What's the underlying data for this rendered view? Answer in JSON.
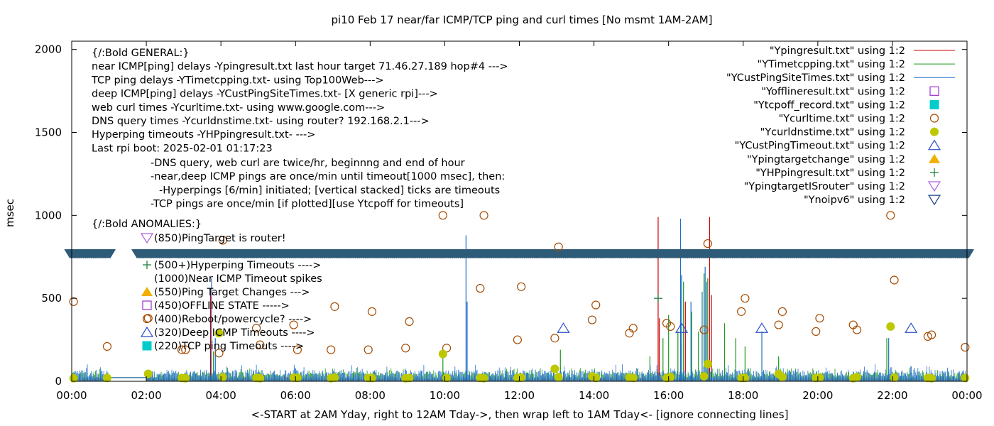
{
  "chart_data": {
    "type": "scatter",
    "title": "pi10 Feb 17  near/far ICMP/TCP ping and curl times [No msmt 1AM-2AM]",
    "xlabel": "<-START at 2AM Yday, right to 12AM Tday->, then wrap left to 1AM Tday<- [ignore connecting lines]",
    "ylabel": "msec",
    "xlim": [
      0,
      24
    ],
    "ylim": [
      0,
      2050
    ],
    "x_ticks": [
      "00:00",
      "02:00",
      "04:00",
      "06:00",
      "08:00",
      "10:00",
      "12:00",
      "14:00",
      "16:00",
      "18:00",
      "20:00",
      "22:00",
      "00:00"
    ],
    "y_ticks": [
      "0",
      "500",
      "1000",
      "1500",
      "2000"
    ],
    "legend_position": "top-right",
    "legend": [
      {
        "label": "\"Ypingresult.txt\" using 1:2",
        "marker": "line",
        "color": "#cc0000"
      },
      {
        "label": "\"YTimetcpping.txt\" using 1:2",
        "marker": "line",
        "color": "#1a9a1a"
      },
      {
        "label": "\"YCustPingSiteTimes.txt\" using 1:2",
        "marker": "line",
        "color": "#1e6fc8"
      },
      {
        "label": "\"Yofflineresult.txt\" using 1:2",
        "marker": "open-square",
        "color": "#9a2fd0"
      },
      {
        "label": "\"Ytcpoff_record.txt\" using 1:2",
        "marker": "filled-square",
        "color": "#00cccc"
      },
      {
        "label": "\"Ycurltime.txt\" using 1:2",
        "marker": "open-circle",
        "color": "#a54a00"
      },
      {
        "label": "\"Ycurldnstime.txt\" using 1:2",
        "marker": "filled-circle",
        "color": "#bcc800"
      },
      {
        "label": "\"YCustPingTimeout.txt\" using 1:2",
        "marker": "open-triangle-up",
        "color": "#2a4fc8"
      },
      {
        "label": "\"Ypingtargetchange\" using 1:2",
        "marker": "filled-triangle-up",
        "color": "#f0b000"
      },
      {
        "label": "\"YHPpingresult.txt\" using 1:2",
        "marker": "plus",
        "color": "#127a30"
      },
      {
        "label": "\"YpingtargetISrouter\" using 1:2",
        "marker": "open-triangle-down",
        "color": "#b060e0"
      },
      {
        "label": "\"Ynoipv6\" using 1:2",
        "marker": "open-triangle-down",
        "color": "#1a3e88"
      }
    ],
    "annotations_general": [
      "{/:Bold GENERAL:}",
      "near ICMP[ping] delays -Ypingresult.txt last hour target 71.46.27.189 hop#4 --->",
      "TCP ping delays -YTimetcpping.txt- using Top100Web--->",
      "deep ICMP[ping] delays -YCustPingSiteTimes.txt- [X generic rpi]--->",
      "web curl times -Ycurltime.txt- using www.google.com--->",
      "DNS query times -Ycurldnstime.txt- using router? 192.168.2.1--->",
      "Hyperping timeouts -YHPpingresult.txt- --->",
      "Last rpi boot: 2025-02-01 01:17:23"
    ],
    "annotations_rules": [
      "-DNS query, web curl are twice/hr, beginnng and end of hour",
      "-near,deep ICMP pings are once/min until timeout[1000 msec], then:",
      "-Hyperpings [6/min] initiated; [vertical stacked] ticks are timeouts",
      "-TCP pings are once/min [if plotted][use Ytcpoff for timeouts]"
    ],
    "annotations_anomalies": [
      {
        "marker": "none",
        "text": "{/:Bold ANOMALIES:}"
      },
      {
        "marker": "open-triangle-down",
        "text": "(850)PingTarget is router!"
      },
      {
        "marker": "plus",
        "text": "(500+)Hyperping Timeouts ---->"
      },
      {
        "marker": "none",
        "text": "(1000)Near ICMP Timeout spikes"
      },
      {
        "marker": "filled-triangle-up",
        "text": "(550)Ping Target Changes --->"
      },
      {
        "marker": "open-square",
        "text": "(450)OFFLINE STATE ----->"
      },
      {
        "marker": "open-circle",
        "text": "(400)Reboot/powercycle? ---->"
      },
      {
        "marker": "open-triangle-up",
        "text": "(320)Deep ICMP Timeouts ---->"
      },
      {
        "marker": "filled-square",
        "text": "(220)TCP ping Timeouts ---->"
      }
    ],
    "noipv6_band": {
      "y": 770,
      "color": "#2e5b78",
      "gap_x": [
        1.05,
        1.75
      ]
    },
    "series": [
      {
        "name": "\"Ypingresult.txt\" using 1:2",
        "kind": "noise",
        "color": "#cc0000",
        "x_range": [
          0,
          24
        ],
        "gap": [
          1,
          2
        ],
        "base": 8,
        "amp": 15,
        "spikes": [
          [
            3.72,
            560
          ],
          [
            15.72,
            990
          ],
          [
            15.75,
            380
          ],
          [
            16.35,
            230
          ],
          [
            16.45,
            480
          ],
          [
            17.1,
            990
          ],
          [
            17.15,
            520
          ]
        ]
      },
      {
        "name": "\"YTimetcpping.txt\" using 1:2",
        "kind": "noise",
        "color": "#1a9a1a",
        "x_range": [
          0,
          24
        ],
        "gap": [
          1,
          2
        ],
        "base": 18,
        "amp": 40,
        "spikes": [
          [
            3.8,
            180
          ],
          [
            9.95,
            170
          ],
          [
            13.1,
            190
          ],
          [
            15.5,
            150
          ],
          [
            15.85,
            260
          ],
          [
            16.0,
            400
          ],
          [
            16.25,
            300
          ],
          [
            16.4,
            600
          ],
          [
            16.62,
            420
          ],
          [
            16.8,
            300
          ],
          [
            16.95,
            650
          ],
          [
            17.05,
            620
          ],
          [
            17.5,
            350
          ],
          [
            17.8,
            260
          ],
          [
            18.05,
            210
          ],
          [
            18.95,
            150
          ],
          [
            21.85,
            260
          ]
        ]
      },
      {
        "name": "\"YCustPingSiteTimes.txt\" using 1:2",
        "kind": "noise",
        "color": "#1e6fc8",
        "x_range": [
          0,
          24
        ],
        "gap": [
          1,
          2
        ],
        "base": 15,
        "amp": 55,
        "spikes": [
          [
            3.75,
            620
          ],
          [
            3.85,
            260
          ],
          [
            10.57,
            880
          ],
          [
            10.6,
            480
          ],
          [
            16.32,
            980
          ],
          [
            16.35,
            640
          ],
          [
            16.6,
            480
          ],
          [
            16.9,
            540
          ],
          [
            16.98,
            690
          ],
          [
            17.02,
            600
          ],
          [
            18.5,
            300
          ],
          [
            21.9,
            260
          ]
        ]
      },
      {
        "name": "\"Ycurltime.txt\" using 1:2",
        "kind": "points",
        "marker": "open-circle",
        "color": "#a54a00",
        "x": [
          0.05,
          0.95,
          2.05,
          2.95,
          3.05,
          3.95,
          4.05,
          4.95,
          5.05,
          5.95,
          6.05,
          6.95,
          7.05,
          7.95,
          8.05,
          8.95,
          9.05,
          9.95,
          10.05,
          10.95,
          11.05,
          11.95,
          12.05,
          12.95,
          13.05,
          13.95,
          14.05,
          14.95,
          15.05,
          15.95,
          16.05,
          16.95,
          17.05,
          17.95,
          18.05,
          18.95,
          19.05,
          19.95,
          20.05,
          20.95,
          21.05,
          21.95,
          22.05,
          22.95,
          23.05,
          23.95
        ],
        "y": [
          480,
          210,
          380,
          190,
          190,
          170,
          850,
          320,
          220,
          340,
          190,
          190,
          450,
          190,
          420,
          200,
          360,
          1000,
          200,
          560,
          1000,
          250,
          570,
          260,
          810,
          370,
          460,
          290,
          320,
          350,
          330,
          310,
          830,
          420,
          500,
          340,
          420,
          300,
          380,
          340,
          310,
          1000,
          610,
          270,
          280,
          205
        ]
      },
      {
        "name": "\"Ycurldnstime.txt\" using 1:2",
        "kind": "points",
        "marker": "filled-circle",
        "color": "#bcc800",
        "x": [
          0.05,
          0.95,
          2.05,
          2.95,
          3.05,
          3.95,
          4.05,
          4.95,
          5.05,
          5.95,
          6.05,
          6.95,
          7.05,
          7.95,
          8.05,
          8.95,
          9.05,
          9.95,
          10.05,
          10.95,
          11.05,
          11.95,
          12.05,
          12.95,
          13.05,
          13.95,
          14.05,
          14.95,
          15.05,
          15.95,
          16.05,
          16.95,
          17.05,
          17.95,
          18.05,
          18.95,
          19.05,
          19.95,
          20.05,
          20.95,
          21.05,
          21.95,
          22.05,
          22.95,
          23.05,
          23.95
        ],
        "y": [
          18,
          20,
          45,
          20,
          18,
          290,
          25,
          20,
          18,
          22,
          20,
          18,
          22,
          20,
          20,
          18,
          20,
          165,
          20,
          20,
          18,
          20,
          22,
          75,
          25,
          30,
          20,
          22,
          20,
          20,
          25,
          30,
          105,
          20,
          20,
          45,
          25,
          20,
          22,
          18,
          25,
          330,
          22,
          20,
          18,
          20
        ]
      },
      {
        "name": "\"YCustPingTimeout.txt\" using 1:2",
        "kind": "points",
        "marker": "open-triangle-up",
        "color": "#2a4fc8",
        "x": [
          13.18,
          16.35,
          18.5,
          22.5
        ],
        "y": [
          320,
          320,
          320,
          320
        ]
      },
      {
        "name": "\"YHPpingresult.txt\" using 1:2",
        "kind": "points",
        "marker": "plus",
        "color": "#127a30",
        "x": [
          15.72
        ],
        "y": [
          500
        ]
      }
    ]
  }
}
